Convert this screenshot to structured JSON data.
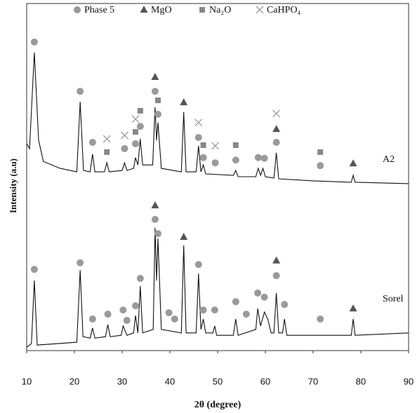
{
  "chart_data": {
    "type": "line",
    "x_label": "2θ (degree)",
    "y_label": "Intensity (a.u)",
    "xlim": [
      10,
      90
    ],
    "xticks": [
      10,
      20,
      30,
      40,
      50,
      60,
      70,
      80,
      90
    ],
    "ylim": [
      0,
      100
    ],
    "series": [
      {
        "name": "A2",
        "color": "#111111",
        "x": [
          10,
          10.6,
          11.6,
          12.5,
          13.5,
          17,
          20.5,
          21.2,
          21.9,
          23.3,
          23.8,
          24.3,
          26.3,
          26.8,
          27.3,
          30,
          30.5,
          31,
          32.4,
          32.8,
          33.3,
          33.8,
          34.3,
          36.4,
          36.9,
          37.2,
          37.5,
          38.2,
          42.4,
          42.9,
          43.4,
          45.5,
          46,
          46.5,
          47,
          47.5,
          53.3,
          53.8,
          54.3,
          58,
          58.5,
          59,
          59.5,
          60,
          61.8,
          62.3,
          62.8,
          70,
          78,
          78.4,
          78.8,
          90
        ],
        "values": [
          59.6,
          58.2,
          85.9,
          60.6,
          54.5,
          52.5,
          51.5,
          71.7,
          51.9,
          51.5,
          56.6,
          51.5,
          51.5,
          54.1,
          51.5,
          51.9,
          54.1,
          51.9,
          52.5,
          55.6,
          53.5,
          61,
          53.5,
          53.5,
          70.1,
          60.6,
          65.7,
          52.5,
          51.5,
          68.7,
          51.5,
          51.5,
          59,
          51.5,
          53.5,
          50.9,
          50.5,
          51.9,
          50.1,
          50.1,
          52.5,
          50.5,
          52.5,
          50.1,
          49.7,
          57,
          49.5,
          48.9,
          48.5,
          50.5,
          48.5,
          48.1
        ]
      },
      {
        "name": "Sorel",
        "color": "#111111",
        "x": [
          10,
          11,
          11.6,
          12.2,
          20.5,
          21.2,
          21.8,
          23.3,
          23.8,
          24.3,
          26.5,
          27,
          27.5,
          29.8,
          30.2,
          31,
          32.4,
          32.8,
          33.3,
          33.8,
          34.3,
          36.5,
          36.9,
          37.2,
          37.5,
          38.2,
          42.4,
          42.9,
          43.4,
          45.5,
          46,
          46.5,
          47,
          47.5,
          49,
          49.4,
          49.8,
          53.3,
          53.8,
          54.3,
          58,
          58.4,
          59,
          59.8,
          60.5,
          61.2,
          61.8,
          62.3,
          62.8,
          63.6,
          64,
          64.5,
          70,
          78,
          78.4,
          78.8,
          90
        ],
        "values": [
          1,
          2,
          20.2,
          1.6,
          2.4,
          23.2,
          4,
          3.6,
          6.5,
          3.6,
          4,
          7.5,
          4,
          4.4,
          7.1,
          4.4,
          5.1,
          10.1,
          5.1,
          18.6,
          5.1,
          6.1,
          35.4,
          20.2,
          32.3,
          6.1,
          5.1,
          30.3,
          5.1,
          5.1,
          22.2,
          6.1,
          9.1,
          5.1,
          5.1,
          7.1,
          4.4,
          4.4,
          9.1,
          4.4,
          6.1,
          12.1,
          7.1,
          11.1,
          9.1,
          5.1,
          5.1,
          16.6,
          5.1,
          5.1,
          9.1,
          4.4,
          4.4,
          4.4,
          9.1,
          4.4,
          5.1
        ]
      }
    ],
    "phases": [
      {
        "name": "Phase 5",
        "shape": "circle",
        "color": "#9a9a9a",
        "x": [
          11.6,
          21.2,
          23.8,
          30.5,
          32.8,
          33.8,
          36.9,
          37.5,
          46,
          47,
          49.5,
          53.8,
          58.5,
          59.8,
          62.3,
          71.5,
          11.6,
          21.2,
          23.8,
          27,
          30.2,
          31,
          32.8,
          33.8,
          36.9,
          37.5,
          39.8,
          41,
          46,
          47,
          49.4,
          53.8,
          56,
          58.4,
          59.8,
          62.3,
          64,
          71.5
        ],
        "y": [
          88.9,
          74.7,
          60,
          58.2,
          59.6,
          64.6,
          74.7,
          68.1,
          61.4,
          55.6,
          54.1,
          54.9,
          55.6,
          55.4,
          60,
          53.3,
          23.4,
          25.3,
          9.1,
          10.5,
          11.7,
          8.7,
          12.9,
          20.8,
          37.8,
          33.7,
          10.9,
          9.1,
          24.8,
          11.7,
          11.7,
          14.1,
          10.5,
          16.6,
          15.4,
          21.6,
          13.3,
          9.1
        ]
      },
      {
        "name": "MgO",
        "shape": "triangle",
        "color": "#555555",
        "x": [
          36.9,
          42.9,
          62.3,
          78.4,
          36.9,
          42.9,
          62.3,
          78.4
        ],
        "y": [
          78.8,
          71.5,
          63.8,
          53.9,
          41.8,
          32.7,
          25.9,
          12.1
        ]
      },
      {
        "name": "Na₂O",
        "shape": "square",
        "color": "#888888",
        "x": [
          26.8,
          32.8,
          33.8,
          37.5,
          47,
          53.8,
          71.5
        ],
        "y": [
          57.2,
          63,
          69.1,
          72.1,
          59.2,
          59.2,
          57.2
        ]
      },
      {
        "name": "CaHPO₄",
        "shape": "cross",
        "color": "#9a9a9a",
        "x": [
          26.8,
          30.5,
          32.8,
          46,
          49.5,
          62.3
        ],
        "y": [
          61,
          62,
          66.7,
          65.7,
          59,
          68.3
        ]
      }
    ]
  }
}
